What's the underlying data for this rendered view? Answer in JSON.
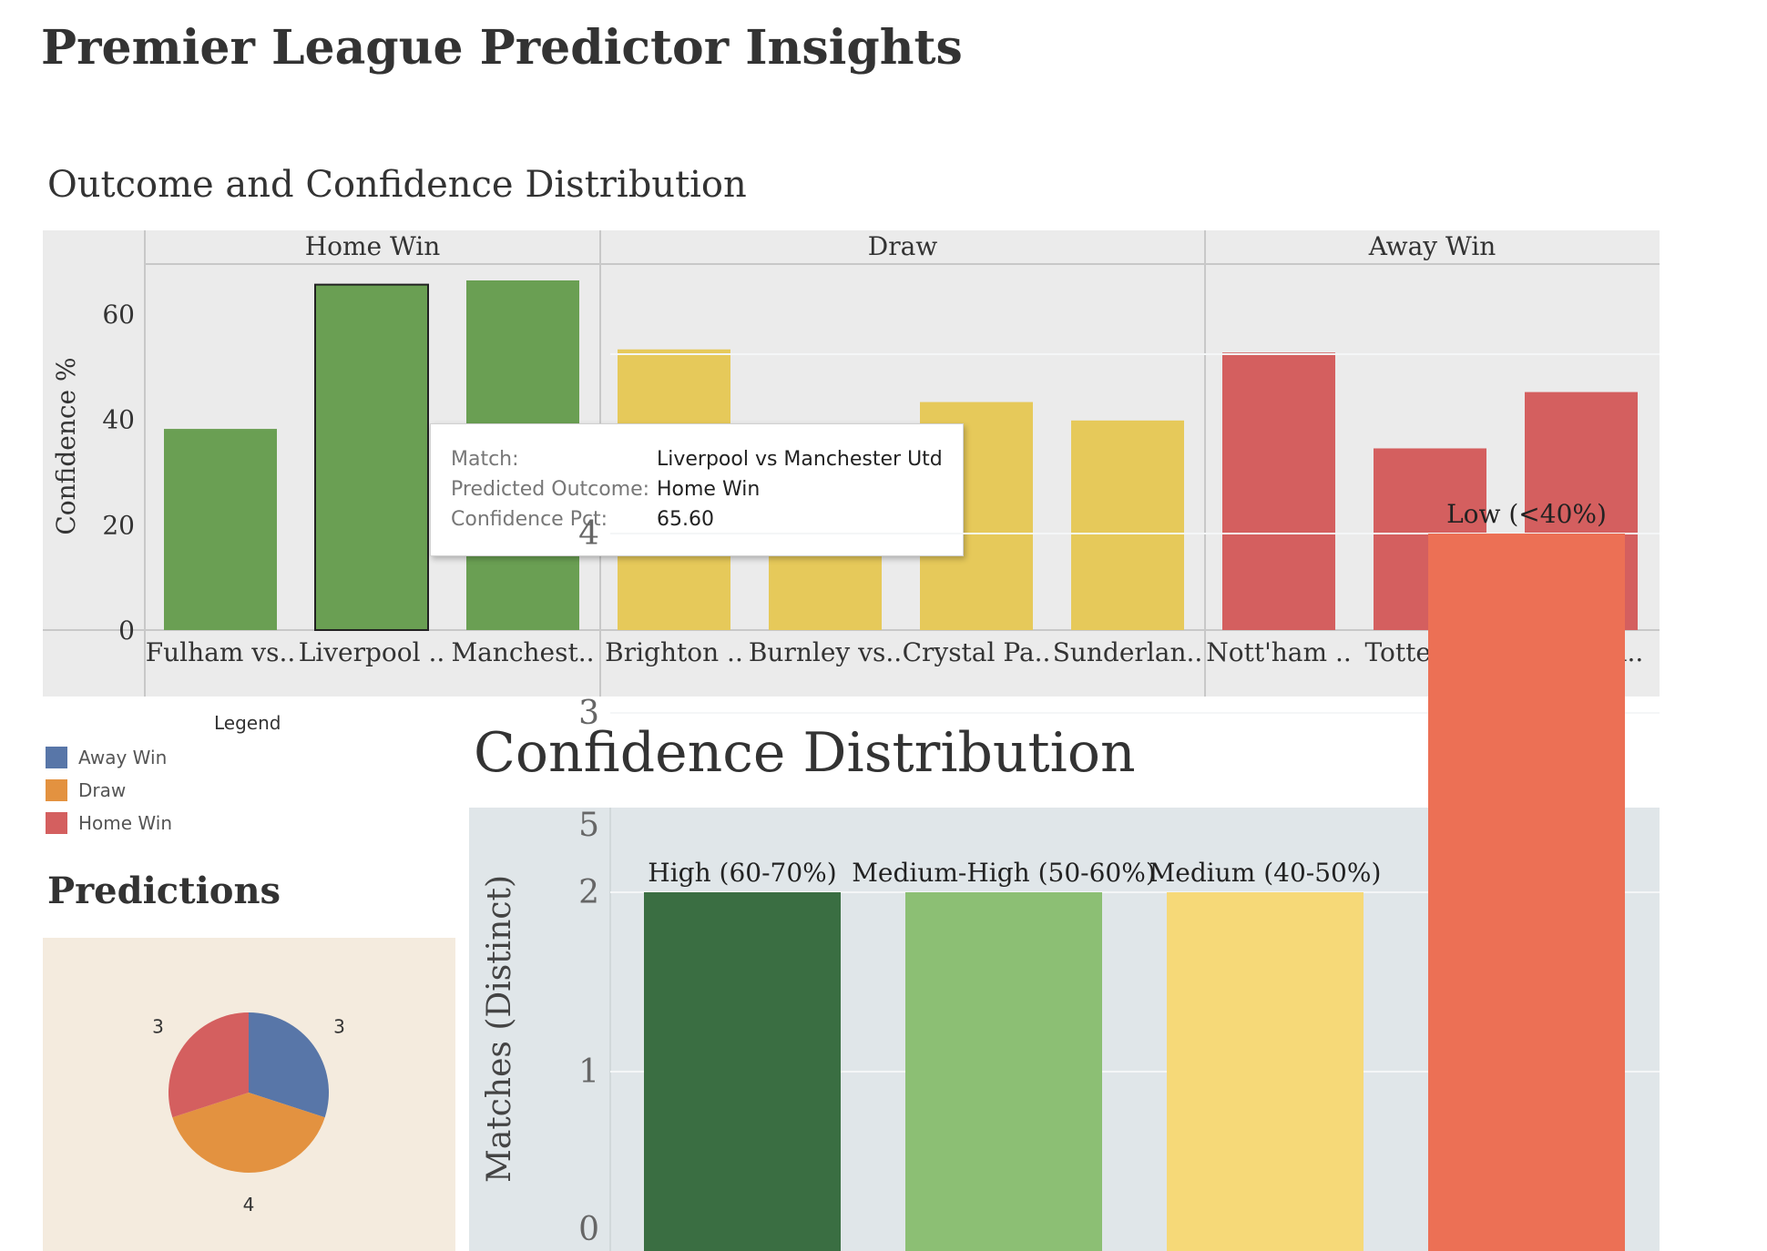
{
  "dashboard": {
    "title": "Premier League Predictor Insights"
  },
  "sheet1": {
    "title": "Outcome and Confidence Distribution",
    "ylabel": "Confidence %",
    "yticks": [
      "0",
      "20",
      "40",
      "60"
    ],
    "groups": [
      {
        "label": "Home Win",
        "color": "#6a9f53"
      },
      {
        "label": "Draw",
        "color": "#e6c95a"
      },
      {
        "label": "Away Win",
        "color": "#d45f5f"
      }
    ]
  },
  "chart_data": [
    {
      "type": "bar",
      "title": "Outcome and Confidence Distribution",
      "ylabel": "Confidence %",
      "ylim": [
        0,
        70
      ],
      "groups": [
        "Home Win",
        "Draw",
        "Away Win"
      ],
      "categories": [
        "Fulham vs..",
        "Liverpool ..",
        "Manchest..",
        "Brighton ..",
        "Burnley vs..",
        "Crystal Pa..",
        "Sunderlan..",
        "Nott'ham ..",
        "Tottenha..",
        "West Ha.."
      ],
      "group_of_category": [
        "Home Win",
        "Home Win",
        "Home Win",
        "Draw",
        "Draw",
        "Draw",
        "Draw",
        "Away Win",
        "Away Win",
        "Away Win"
      ],
      "values": [
        38.2,
        65.6,
        66.4,
        53.3,
        25.0,
        43.3,
        39.8,
        52.7,
        34.5,
        45.2
      ],
      "selected_index": 1,
      "grid": false
    },
    {
      "type": "bar",
      "title": "Confidence Distribution",
      "ylabel": "Matches (Distinct)",
      "ylim": [
        0,
        5
      ],
      "yticks": [
        "0",
        "1",
        "2",
        "3",
        "4",
        "5"
      ],
      "categories": [
        "High (60-70%)",
        "Medium-High (50-60%)",
        "Medium (40-50%)",
        "Low (<40%)"
      ],
      "values": [
        2,
        2,
        2,
        4
      ],
      "colors": [
        "#3a6e42",
        "#8cbf74",
        "#f6d978",
        "#ec7055"
      ],
      "grid": true
    },
    {
      "type": "pie",
      "title": "Predictions",
      "categories": [
        "Away Win",
        "Draw",
        "Home Win"
      ],
      "values": [
        3,
        4,
        3
      ],
      "colors": [
        "#5876a8",
        "#e39240",
        "#d45f5f"
      ]
    }
  ],
  "legend": {
    "title": "Legend",
    "items": [
      {
        "label": "Away Win",
        "color": "#5876a8"
      },
      {
        "label": "Draw",
        "color": "#e39240"
      },
      {
        "label": "Home Win",
        "color": "#d45f5f"
      }
    ]
  },
  "tooltip": {
    "rows": [
      {
        "key": "Match:",
        "value": "Liverpool vs Manchester Utd"
      },
      {
        "key": "Predicted Outcome:",
        "value": "Home Win"
      },
      {
        "key": "Confidence Pct:",
        "value": "65.60"
      }
    ]
  },
  "sheet2": {
    "title": "Confidence Distribution"
  },
  "sheet3": {
    "title": "Predictions"
  }
}
